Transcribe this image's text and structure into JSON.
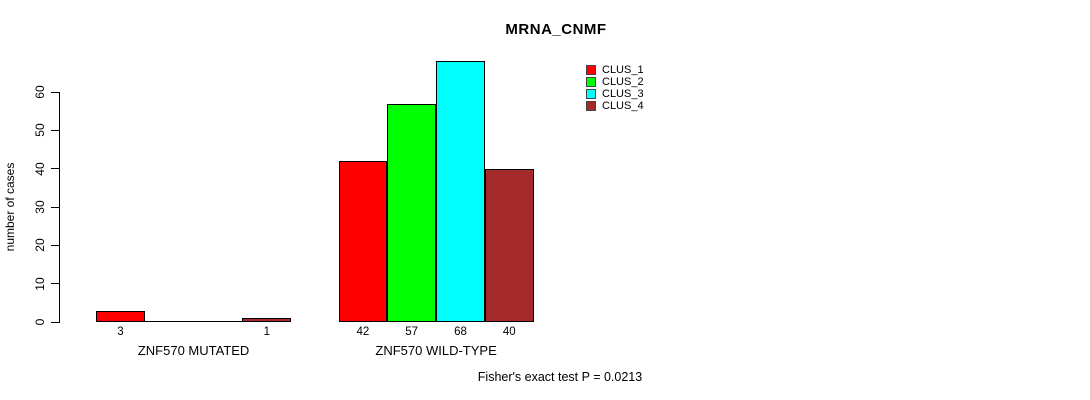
{
  "chart_data": {
    "type": "bar",
    "title": "MRNA_CNMF",
    "ylabel": "number of cases",
    "xlabel": "",
    "categories": [
      "ZNF570 MUTATED",
      "ZNF570 WILD-TYPE"
    ],
    "series": [
      {
        "name": "CLUS_1",
        "color": "#ff0000",
        "values": [
          3,
          42
        ]
      },
      {
        "name": "CLUS_2",
        "color": "#00ff00",
        "values": [
          0,
          57
        ]
      },
      {
        "name": "CLUS_3",
        "color": "#00ffff",
        "values": [
          0,
          68
        ]
      },
      {
        "name": "CLUS_4",
        "color": "#a52a2a",
        "values": [
          1,
          40
        ]
      }
    ],
    "yticks": [
      0,
      10,
      20,
      30,
      40,
      50,
      60
    ],
    "ylim": [
      0,
      60
    ],
    "grid": false,
    "bar_outline_color": "#000000",
    "bar_value_labels_shown_for_nonzero_only": true,
    "legend_position": "top-right",
    "legend_entries": [
      "CLUS_1",
      "CLUS_2",
      "CLUS_3",
      "CLUS_4"
    ],
    "annotation": "Fisher's exact test P = 0.0213"
  }
}
